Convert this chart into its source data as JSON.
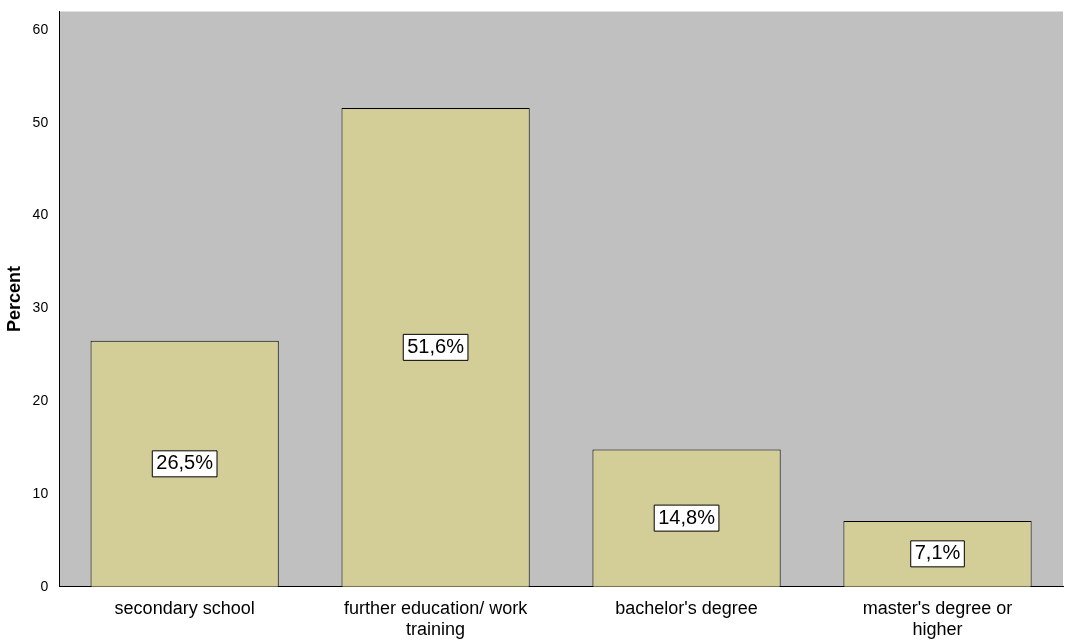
{
  "chart_data": {
    "type": "bar",
    "ylabel": "Percent",
    "categories": [
      "secondary school",
      "further education/ work training",
      "bachelor's degree",
      "master's degree or higher"
    ],
    "values": [
      26.5,
      51.6,
      14.8,
      7.1
    ],
    "value_labels": [
      "26,5%",
      "51,6%",
      "14,8%",
      "7,1%"
    ],
    "color": "#d3ce97",
    "ylim": [
      0,
      62
    ],
    "yticks": [
      0,
      10,
      20,
      30,
      40,
      50,
      60
    ],
    "grid": false,
    "legend": false
  }
}
